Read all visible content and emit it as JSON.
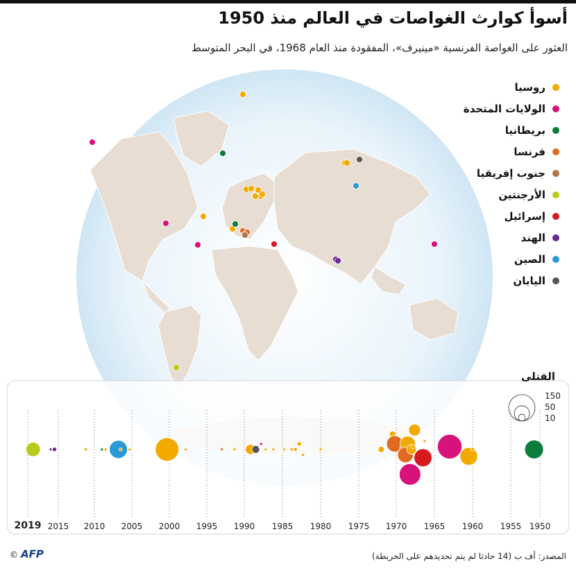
{
  "title": "أسوأ كوارث الغواصات في العالم منذ 1950",
  "subtitle": "العثور على الغواصة الفرنسية «مينيرف»، المفقودة منذ العام 1968، في البحر المتوسط",
  "legend": [
    {
      "label": "روسيا",
      "color": "#f2a900"
    },
    {
      "label": "الولايات المتحدة",
      "color": "#d7127b"
    },
    {
      "label": "بريطانيا",
      "color": "#0a7d3c"
    },
    {
      "label": "فرنسا",
      "color": "#e06a20"
    },
    {
      "label": "جنوب إفريقيا",
      "color": "#b0744a"
    },
    {
      "label": "الأرجنتين",
      "color": "#b7cc1a"
    },
    {
      "label": "إسرائيل",
      "color": "#d71920"
    },
    {
      "label": "الهند",
      "color": "#6a2a8f"
    },
    {
      "label": "الصين",
      "color": "#2a9ad6"
    },
    {
      "label": "اليابان",
      "color": "#5a5550"
    }
  ],
  "killed": {
    "title": "القتلى",
    "sizes": [
      {
        "label": "150",
        "value": 150
      },
      {
        "label": "50",
        "value": 50
      },
      {
        "label": "10",
        "value": 10
      }
    ]
  },
  "years": [
    "2019",
    "2015",
    "2010",
    "2005",
    "2000",
    "1995",
    "1990",
    "1985",
    "1980",
    "1975",
    "1970",
    "1965",
    "1960",
    "1955",
    "1950"
  ],
  "timeline_bubbles": [
    {
      "year": 2019.2,
      "country": "روسيا",
      "killed": 1
    },
    {
      "year": 2018.3,
      "country": "الأرجنتين",
      "killed": 44
    },
    {
      "year": 2016.0,
      "country": "الهند",
      "killed": 1
    },
    {
      "year": 2015.5,
      "country": "الهند",
      "killed": 4
    },
    {
      "year": 2011.2,
      "country": "روسيا",
      "killed": 2
    },
    {
      "year": 2009.0,
      "country": "بريطانيا",
      "killed": 1
    },
    {
      "year": 2008.5,
      "country": "روسيا",
      "killed": 1
    },
    {
      "year": 2007.5,
      "country": "روسيا",
      "killed": 2
    },
    {
      "year": 2006.8,
      "country": "الصين",
      "killed": 70
    },
    {
      "year": 2006.5,
      "country": "روسيا",
      "killed": 2
    },
    {
      "year": 2005.3,
      "country": "روسيا",
      "killed": 1
    },
    {
      "year": 2000.3,
      "country": "روسيا",
      "killed": 118
    },
    {
      "year": 1997.8,
      "country": "روسيا",
      "killed": 1
    },
    {
      "year": 1993.0,
      "country": "فرنسا",
      "killed": 1
    },
    {
      "year": 1991.3,
      "country": "روسيا",
      "killed": 1
    },
    {
      "year": 1989.2,
      "country": "روسيا",
      "killed": 21
    },
    {
      "year": 1988.5,
      "country": "اليابان",
      "killed": 13
    },
    {
      "year": 1987.8,
      "country": "الولايات المتحدة",
      "killed": 1
    },
    {
      "year": 1987.2,
      "country": "روسيا",
      "killed": 1
    },
    {
      "year": 1986.2,
      "country": "روسيا",
      "killed": 1
    },
    {
      "year": 1984.8,
      "country": "روسيا",
      "killed": 1
    },
    {
      "year": 1983.8,
      "country": "روسيا",
      "killed": 2
    },
    {
      "year": 1983.3,
      "country": "روسيا",
      "killed": 3
    },
    {
      "year": 1982.8,
      "country": "روسيا",
      "killed": 4
    },
    {
      "year": 1982.3,
      "country": "روسيا",
      "killed": 2
    },
    {
      "year": 1980.0,
      "country": "روسيا",
      "killed": 1
    },
    {
      "year": 1972.0,
      "country": "روسيا",
      "killed": 8
    },
    {
      "year": 1970.5,
      "country": "روسيا",
      "killed": 8
    },
    {
      "year": 1970.2,
      "country": "فرنسا",
      "killed": 57
    },
    {
      "year": 1969.2,
      "country": "روسيا",
      "killed": 16
    },
    {
      "year": 1969.0,
      "country": "فرنسا",
      "killed": 18
    },
    {
      "year": 1968.5,
      "country": "روسيا",
      "killed": 52
    },
    {
      "year": 1968.8,
      "country": "فرنسا",
      "killed": 52
    },
    {
      "year": 1968.2,
      "country": "روسيا",
      "killed": 2
    },
    {
      "year": 1968.0,
      "country": "روسيا",
      "killed": 20
    },
    {
      "year": 1967.6,
      "country": "روسيا",
      "killed": 30
    },
    {
      "year": 1966.5,
      "country": "إسرائيل",
      "killed": 69
    },
    {
      "year": 1967.8,
      "country": "روسيا",
      "killed": 4
    },
    {
      "year": 1968.2,
      "country": "الولايات المتحدة",
      "killed": 99
    },
    {
      "year": 1966.3,
      "country": "روسيا",
      "killed": 1
    },
    {
      "year": 1963.0,
      "country": "الولايات المتحدة",
      "killed": 129
    },
    {
      "year": 1960.5,
      "country": "روسيا",
      "killed": 67
    },
    {
      "year": 1960.0,
      "country": "روسيا",
      "killed": 3
    },
    {
      "year": 1951.0,
      "country": "بريطانيا",
      "killed": 75
    }
  ],
  "map_points": [
    {
      "country": "روسيا"
    },
    {
      "country": "الولايات المتحدة"
    },
    {
      "country": "بريطانيا"
    },
    {
      "country": "فرنسا"
    },
    {
      "country": "جنوب إفريقيا"
    },
    {
      "country": "الأرجنتين"
    },
    {
      "country": "إسرائيل"
    },
    {
      "country": "الهند"
    },
    {
      "country": "الصين"
    },
    {
      "country": "اليابان"
    }
  ],
  "source": "المصدر: أف ب (14 حادثا لم يتم تحديدهم على الخريطة)",
  "logo": "AFP",
  "copyright": "©"
}
